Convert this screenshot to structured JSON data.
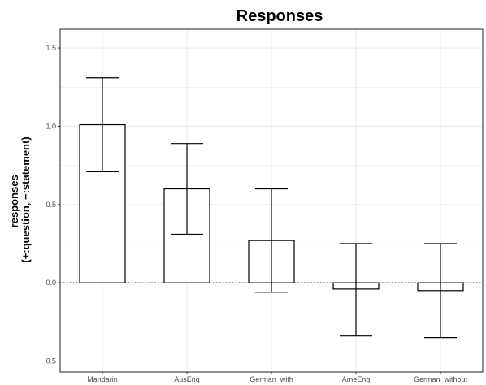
{
  "chart_data": {
    "type": "bar",
    "title": "Responses",
    "ylabel": [
      "responses",
      "(+:question, −:statement)"
    ],
    "xlabel": "",
    "categories": [
      "Mandarin",
      "AusEng",
      "German_with",
      "AmeEng",
      "German_without"
    ],
    "values": [
      1.01,
      0.6,
      0.27,
      -0.04,
      -0.05
    ],
    "error_low": [
      0.71,
      0.31,
      -0.06,
      -0.34,
      -0.35
    ],
    "error_high": [
      1.31,
      0.89,
      0.6,
      0.25,
      0.25
    ],
    "ylim": [
      -0.57,
      1.62
    ],
    "yticks": [
      -0.5,
      0.0,
      0.5,
      1.0,
      1.5
    ],
    "ytick_labels": [
      "−0.5",
      "0.0",
      "0.5",
      "1.0",
      "1.5"
    ],
    "reference_line": 0,
    "grid": true,
    "colors": {
      "bar_fill": "#ffffff",
      "bar_stroke": "#000000",
      "grid": "#ebebeb",
      "panel_border": "#333333"
    }
  }
}
